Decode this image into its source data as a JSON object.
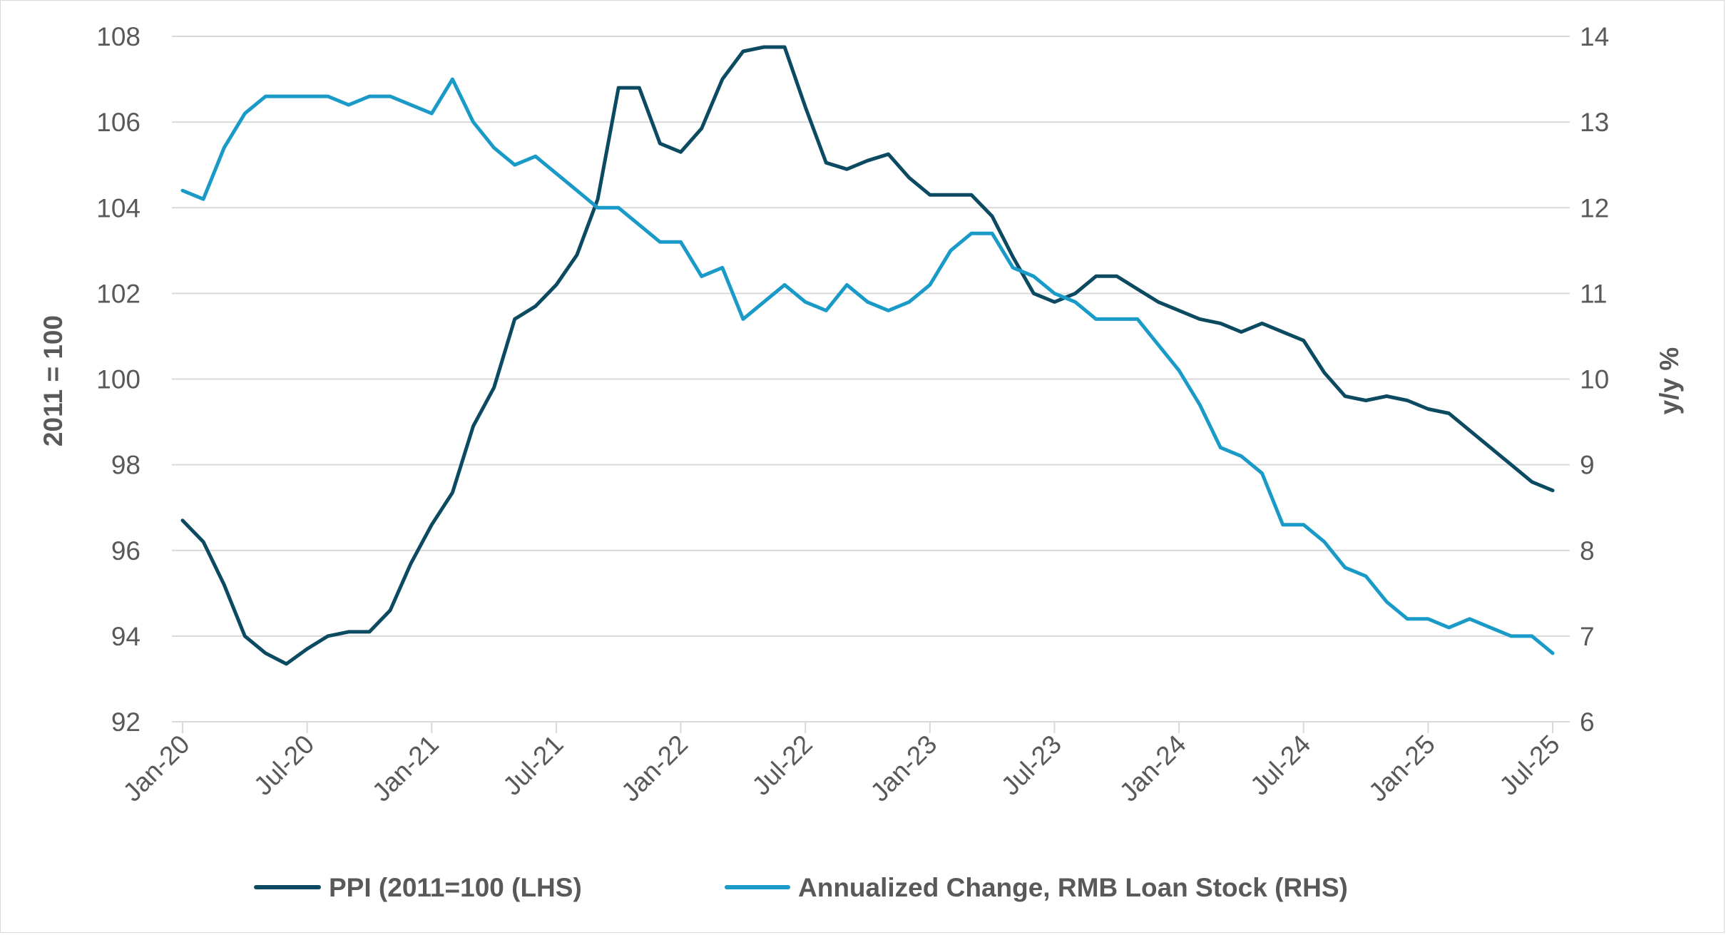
{
  "chart_data": {
    "type": "line",
    "title": "",
    "grid": true,
    "legend_placement": "bottom",
    "x_tick_labels": [
      "Jan-20",
      "Jul-20",
      "Jan-21",
      "Jul-21",
      "Jan-22",
      "Jul-22",
      "Jan-23",
      "Jul-23",
      "Jan-24",
      "Jul-24",
      "Jan-25",
      "Jul-25"
    ],
    "x_start": "2020-01",
    "x_end": "2025-07",
    "y_left": {
      "label": "2011 = 100",
      "range": [
        92,
        108
      ],
      "ticks": [
        "92",
        "94",
        "96",
        "98",
        "100",
        "102",
        "104",
        "106",
        "108"
      ]
    },
    "y_right": {
      "label": "y/y %",
      "range": [
        6,
        14
      ],
      "ticks": [
        "6",
        "7",
        "8",
        "9",
        "10",
        "11",
        "12",
        "13",
        "14"
      ]
    },
    "series": [
      {
        "name": "PPI (2011=100 (LHS)",
        "axis": "left",
        "color": "#0b4a61",
        "x": [
          "2020-01",
          "2020-02",
          "2020-03",
          "2020-04",
          "2020-05",
          "2020-06",
          "2020-07",
          "2020-08",
          "2020-09",
          "2020-10",
          "2020-11",
          "2020-12",
          "2021-01",
          "2021-02",
          "2021-03",
          "2021-04",
          "2021-05",
          "2021-06",
          "2021-07",
          "2021-08",
          "2021-09",
          "2021-10",
          "2021-11",
          "2021-12",
          "2022-01",
          "2022-02",
          "2022-03",
          "2022-04",
          "2022-05",
          "2022-06",
          "2022-07",
          "2022-08",
          "2022-09",
          "2022-10",
          "2022-11",
          "2022-12",
          "2023-01",
          "2023-02",
          "2023-03",
          "2023-04",
          "2023-05",
          "2023-06",
          "2023-07",
          "2023-08",
          "2023-09",
          "2023-10",
          "2023-11",
          "2023-12",
          "2024-01",
          "2024-02",
          "2024-03",
          "2024-04",
          "2024-05",
          "2024-06",
          "2024-07",
          "2024-08",
          "2024-09",
          "2024-10",
          "2024-11",
          "2024-12",
          "2025-01",
          "2025-02",
          "2025-03",
          "2025-04",
          "2025-05",
          "2025-06",
          "2025-07"
        ],
        "values": [
          96.7,
          96.2,
          95.2,
          94.0,
          93.6,
          93.35,
          93.7,
          94.0,
          94.1,
          94.1,
          94.6,
          95.7,
          96.6,
          97.35,
          98.9,
          99.8,
          101.4,
          101.7,
          102.2,
          102.9,
          104.2,
          106.8,
          106.8,
          105.5,
          105.3,
          105.85,
          107.0,
          107.65,
          107.75,
          107.75,
          106.35,
          105.05,
          104.9,
          105.1,
          105.25,
          104.7,
          104.3,
          104.3,
          104.3,
          103.8,
          102.85,
          102.0,
          101.8,
          102.0,
          102.4,
          102.4,
          102.1,
          101.8,
          101.6,
          101.4,
          101.3,
          101.1,
          101.3,
          101.1,
          100.9,
          100.15,
          99.6,
          99.5,
          99.6,
          99.5,
          99.3,
          99.2,
          98.8,
          98.4,
          98.0,
          97.6,
          97.4
        ]
      },
      {
        "name": "Annualized Change, RMB Loan Stock (RHS)",
        "axis": "right",
        "color": "#1a9bc7",
        "x": [
          "2020-01",
          "2020-02",
          "2020-03",
          "2020-04",
          "2020-05",
          "2020-06",
          "2020-07",
          "2020-08",
          "2020-09",
          "2020-10",
          "2020-11",
          "2020-12",
          "2021-01",
          "2021-02",
          "2021-03",
          "2021-04",
          "2021-05",
          "2021-06",
          "2021-07",
          "2021-08",
          "2021-09",
          "2021-10",
          "2021-11",
          "2021-12",
          "2022-01",
          "2022-02",
          "2022-03",
          "2022-04",
          "2022-05",
          "2022-06",
          "2022-07",
          "2022-08",
          "2022-09",
          "2022-10",
          "2022-11",
          "2022-12",
          "2023-01",
          "2023-02",
          "2023-03",
          "2023-04",
          "2023-05",
          "2023-06",
          "2023-07",
          "2023-08",
          "2023-09",
          "2023-10",
          "2023-11",
          "2023-12",
          "2024-01",
          "2024-02",
          "2024-03",
          "2024-04",
          "2024-05",
          "2024-06",
          "2024-07",
          "2024-08",
          "2024-09",
          "2024-10",
          "2024-11",
          "2024-12",
          "2025-01",
          "2025-02",
          "2025-03",
          "2025-04",
          "2025-05",
          "2025-06",
          "2025-07"
        ],
        "values": [
          12.2,
          12.1,
          12.7,
          13.1,
          13.3,
          13.3,
          13.3,
          13.3,
          13.2,
          13.3,
          13.3,
          13.2,
          13.1,
          13.5,
          13.0,
          12.7,
          12.5,
          12.6,
          12.4,
          12.2,
          12.0,
          12.0,
          11.8,
          11.6,
          11.6,
          11.2,
          11.3,
          10.7,
          10.9,
          11.1,
          10.9,
          10.8,
          11.1,
          10.9,
          10.8,
          10.9,
          11.1,
          11.5,
          11.7,
          11.7,
          11.3,
          11.2,
          11.0,
          10.9,
          10.7,
          10.7,
          10.7,
          10.4,
          10.1,
          9.7,
          9.2,
          9.1,
          8.9,
          8.3,
          8.3,
          8.1,
          7.8,
          7.7,
          7.4,
          7.2,
          7.2,
          7.1,
          7.2,
          7.1,
          7.0,
          7.0,
          6.8
        ]
      }
    ]
  }
}
